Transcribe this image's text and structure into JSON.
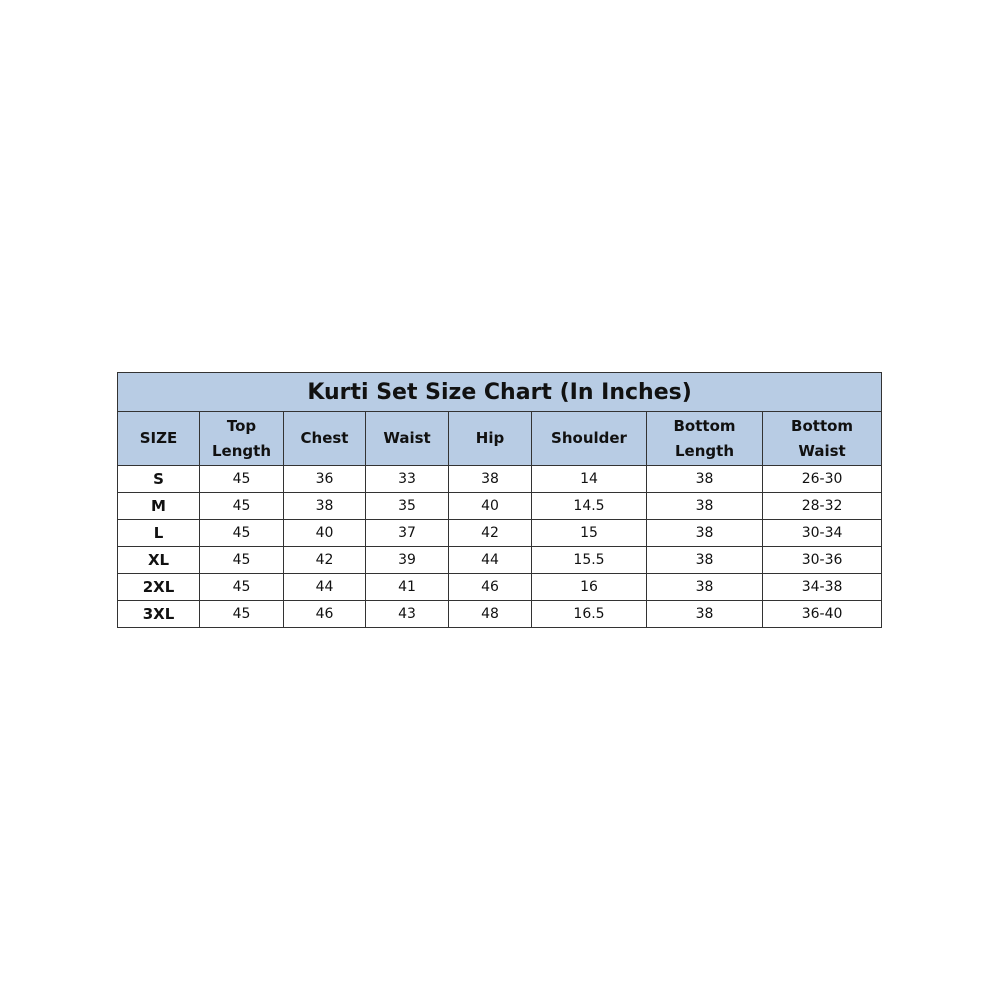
{
  "title": "Kurti Set Size Chart (In Inches)",
  "headers": [
    "SIZE",
    "Top\nLength",
    "Chest",
    "Waist",
    "Hip",
    "Shoulder",
    "Bottom\nLength",
    "Bottom\nWaist"
  ],
  "header_color": "#b8cce4",
  "rows": [
    [
      "S",
      "45",
      "36",
      "33",
      "38",
      "14",
      "38",
      "26-30"
    ],
    [
      "M",
      "45",
      "38",
      "35",
      "40",
      "14.5",
      "38",
      "28-32"
    ],
    [
      "L",
      "45",
      "40",
      "37",
      "42",
      "15",
      "38",
      "30-34"
    ],
    [
      "XL",
      "45",
      "42",
      "39",
      "44",
      "15.5",
      "38",
      "30-36"
    ],
    [
      "2XL",
      "45",
      "44",
      "41",
      "46",
      "16",
      "38",
      "34-38"
    ],
    [
      "3XL",
      "45",
      "46",
      "43",
      "48",
      "16.5",
      "38",
      "36-40"
    ]
  ]
}
